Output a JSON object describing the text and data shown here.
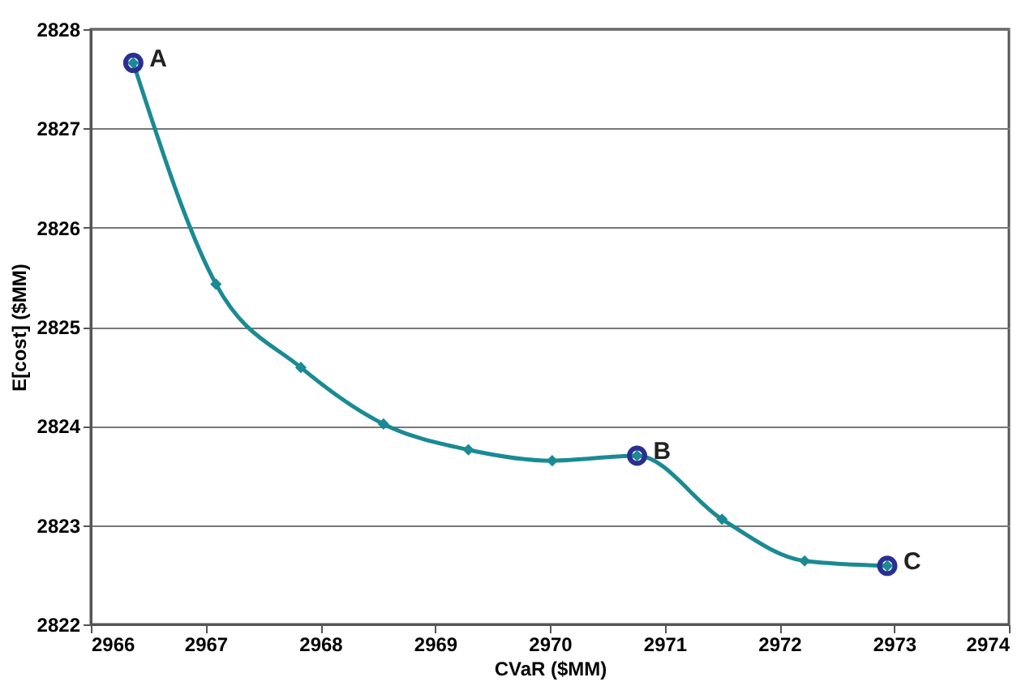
{
  "chart_data": {
    "type": "line",
    "xlabel": "CVaR ($MM)",
    "ylabel": "E[cost] ($MM)",
    "xlim": [
      2966,
      2974
    ],
    "xticks": [
      2966,
      2967,
      2968,
      2969,
      2970,
      2971,
      2972,
      2973,
      2974
    ],
    "ylim": [
      2822,
      2828
    ],
    "yticks": [
      2822,
      2823,
      2824,
      2825,
      2826,
      2827,
      2828
    ],
    "grid": "y",
    "line_style": "solid",
    "series": [
      {
        "color": "#1a8a94",
        "marker": "diamond",
        "x": [
          2966.37,
          2967.09,
          2967.83,
          2968.55,
          2969.29,
          2970.02,
          2970.76,
          2971.5,
          2972.22,
          2972.94
        ],
        "values": [
          2827.66,
          2825.43,
          2824.59,
          2824.02,
          2823.76,
          2823.65,
          2823.7,
          2823.06,
          2822.64,
          2822.59
        ]
      },
      {
        "type": "scatter",
        "color": "#2b2f8f",
        "marker": "circle",
        "x": [
          2966.37,
          2970.76,
          2972.94
        ],
        "values": [
          2827.66,
          2823.7,
          2822.59
        ]
      }
    ],
    "annotations": [
      {
        "text": "A",
        "x": 2966.37,
        "y": 2827.66
      },
      {
        "text": "B",
        "x": 2970.76,
        "y": 2823.7
      },
      {
        "text": "C",
        "x": 2972.94,
        "y": 2822.59
      }
    ]
  }
}
